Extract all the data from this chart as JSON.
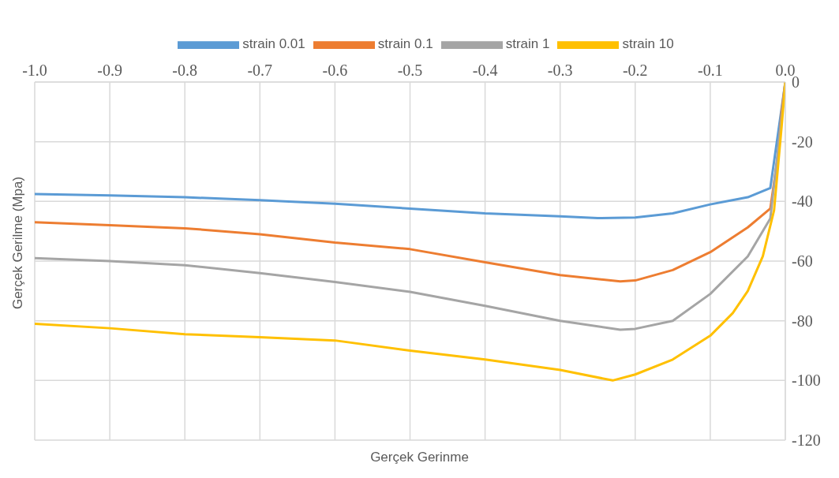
{
  "chart_data": {
    "type": "line",
    "xlabel": "Gerçek Gerinme",
    "ylabel": "Gerçek Gerilme (Mpa)",
    "xlim": [
      -1,
      0
    ],
    "ylim": [
      -120,
      0
    ],
    "xticks": [
      {
        "value": -1,
        "label": "-1.0"
      },
      {
        "value": -0.9,
        "label": "-0.9"
      },
      {
        "value": -0.8,
        "label": "-0.8"
      },
      {
        "value": -0.7,
        "label": "-0.7"
      },
      {
        "value": -0.6,
        "label": "-0.6"
      },
      {
        "value": -0.5,
        "label": "-0.5"
      },
      {
        "value": -0.4,
        "label": "-0.4"
      },
      {
        "value": -0.3,
        "label": "-0.3"
      },
      {
        "value": -0.2,
        "label": "-0.2"
      },
      {
        "value": -0.1,
        "label": "-0.1"
      },
      {
        "value": 0,
        "label": "0.0"
      }
    ],
    "yticks": [
      0,
      -20,
      -40,
      -60,
      -80,
      -100,
      -120
    ],
    "grid": true,
    "legend": "top",
    "marker": "none",
    "line_style": "solid",
    "series": [
      {
        "name": "strain 0.01",
        "color": "#5b9bd5",
        "x": [
          -1,
          -0.9,
          -0.8,
          -0.7,
          -0.6,
          -0.5,
          -0.4,
          -0.3,
          -0.25,
          -0.2,
          -0.15,
          -0.1,
          -0.05,
          -0.02,
          0
        ],
        "values": [
          -37.5,
          -38,
          -38.6,
          -39.6,
          -40.8,
          -42.4,
          -44,
          -45,
          -45.6,
          -45.4,
          -44,
          -41,
          -38.6,
          -35.5,
          0
        ]
      },
      {
        "name": "strain 0.1",
        "color": "#ed7d31",
        "x": [
          -1,
          -0.9,
          -0.8,
          -0.7,
          -0.6,
          -0.5,
          -0.4,
          -0.3,
          -0.22,
          -0.2,
          -0.15,
          -0.1,
          -0.05,
          -0.02,
          -0.01,
          -0.005,
          0
        ],
        "values": [
          -47,
          -48,
          -49,
          -51,
          -53.8,
          -56,
          -60.4,
          -64.7,
          -66.8,
          -66.5,
          -63,
          -57,
          -48.7,
          -42.4,
          -25,
          -10,
          0
        ]
      },
      {
        "name": "strain 1",
        "color": "#a5a5a5",
        "x": [
          -1,
          -0.9,
          -0.8,
          -0.7,
          -0.6,
          -0.5,
          -0.4,
          -0.3,
          -0.22,
          -0.2,
          -0.15,
          -0.1,
          -0.05,
          -0.02,
          -0.005,
          0
        ],
        "values": [
          -59,
          -60,
          -61.4,
          -64,
          -67,
          -70.3,
          -75,
          -80,
          -83,
          -82.7,
          -80,
          -71,
          -58.4,
          -45.7,
          -12,
          0
        ]
      },
      {
        "name": "strain 10",
        "color": "#ffc000",
        "x": [
          -1,
          -0.9,
          -0.8,
          -0.7,
          -0.6,
          -0.5,
          -0.4,
          -0.3,
          -0.23,
          -0.2,
          -0.15,
          -0.1,
          -0.07,
          -0.05,
          -0.03,
          -0.015,
          -0.005,
          0
        ],
        "values": [
          -81,
          -82.5,
          -84.5,
          -85.5,
          -86.6,
          -90,
          -93,
          -96.5,
          -100,
          -98,
          -93,
          -85,
          -77.4,
          -70,
          -58.4,
          -43,
          -15,
          0
        ]
      }
    ]
  }
}
